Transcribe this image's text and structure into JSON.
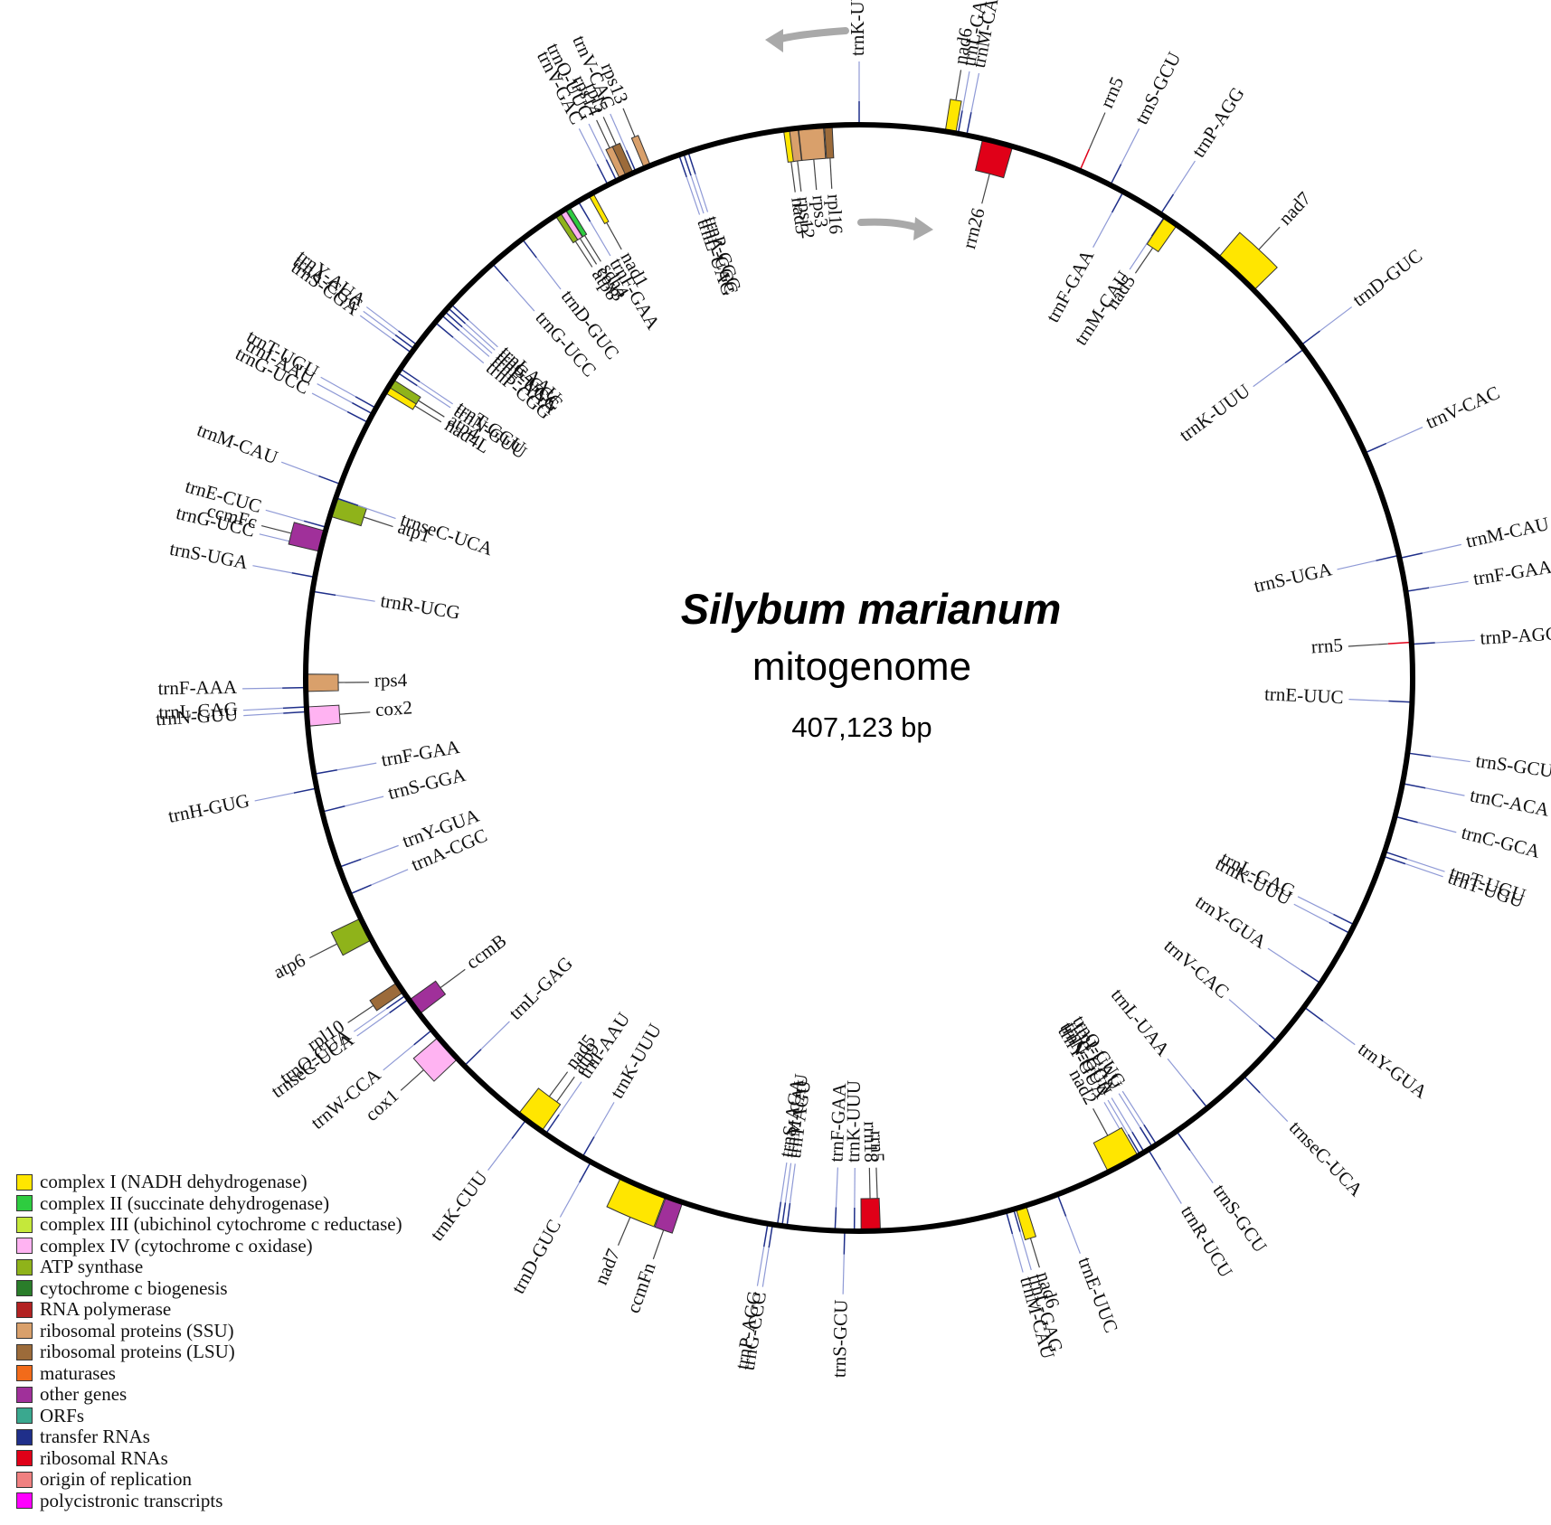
{
  "center": {
    "species": "Silybum marianum",
    "subtitle": "mitogenome",
    "size": "407,123 bp"
  },
  "colors": {
    "complex1": "#ffe600",
    "complex2": "#2ecc40",
    "complex3": "#c5e83a",
    "complex4": "#ffb3f2",
    "atp": "#8fb31a",
    "ccm": "#2a7d2a",
    "rnapol": "#b22222",
    "ssu": "#d9a06b",
    "lsu": "#9c6b3a",
    "maturase": "#f26b1a",
    "other": "#a0309a",
    "orf": "#3aa88f",
    "trna": "#1f2f8a",
    "rrna": "#e00018",
    "ori": "#f08080",
    "poly": "#ff00ff"
  },
  "legend": [
    {
      "label": "complex I (NADH dehydrogenase)",
      "color": "#ffe600"
    },
    {
      "label": "complex II (succinate dehydrogenase)",
      "color": "#2ecc40"
    },
    {
      "label": "complex III (ubichinol cytochrome c reductase)",
      "color": "#c5e83a"
    },
    {
      "label": "complex IV (cytochrome c oxidase)",
      "color": "#ffb3f2"
    },
    {
      "label": "ATP synthase",
      "color": "#8fb31a"
    },
    {
      "label": "cytochrome c biogenesis",
      "color": "#2a7d2a"
    },
    {
      "label": "RNA polymerase",
      "color": "#b22222"
    },
    {
      "label": "ribosomal proteins (SSU)",
      "color": "#d9a06b"
    },
    {
      "label": "ribosomal proteins (LSU)",
      "color": "#9c6b3a"
    },
    {
      "label": "maturases",
      "color": "#f26b1a"
    },
    {
      "label": "other genes",
      "color": "#a0309a"
    },
    {
      "label": "ORFs",
      "color": "#3aa88f"
    },
    {
      "label": "transfer RNAs",
      "color": "#1f2f8a"
    },
    {
      "label": "ribosomal RNAs",
      "color": "#e00018"
    },
    {
      "label": "origin of replication",
      "color": "#f08080"
    },
    {
      "label": "polycistronic transcripts",
      "color": "#ff00ff"
    }
  ],
  "genes": [
    {
      "name": "trnK-UUU",
      "angle": 0,
      "side": "out",
      "cat": "trna"
    },
    {
      "name": "nad6",
      "angle": 9.5,
      "side": "out",
      "cat": "complex1",
      "len": 1.1
    },
    {
      "name": "trnL-GAG",
      "angle": 10.3,
      "side": "out",
      "cat": "trna"
    },
    {
      "name": "trnM-CAU",
      "angle": 11.2,
      "side": "out",
      "cat": "trna"
    },
    {
      "name": "rrn26",
      "angle": 14.5,
      "side": "in",
      "cat": "rrna",
      "len": 3.2
    },
    {
      "name": "rrn5",
      "angle": 23.5,
      "side": "out",
      "cat": "rrna"
    },
    {
      "name": "trnS-GCU",
      "angle": 27,
      "side": "out",
      "cat": "trna"
    },
    {
      "name": "trnF-GAA",
      "angle": 28.5,
      "side": "in",
      "cat": "trna"
    },
    {
      "name": "trnP-AGG",
      "angle": 33,
      "side": "out",
      "cat": "trna"
    },
    {
      "name": "trnM-CAU",
      "angle": 33.5,
      "side": "in",
      "cat": "trna"
    },
    {
      "name": "nad5",
      "angle": 34.3,
      "side": "in",
      "cat": "complex1",
      "len": 1.5
    },
    {
      "name": "nad7",
      "angle": 43,
      "side": "out",
      "cat": "complex1",
      "len": 5
    },
    {
      "name": "trnD-GUC",
      "angle": 53,
      "side": "out",
      "cat": "trna"
    },
    {
      "name": "trnK-UUU",
      "angle": 53.5,
      "side": "in",
      "cat": "trna"
    },
    {
      "name": "trnV-CAC",
      "angle": 66,
      "side": "out",
      "cat": "trna"
    },
    {
      "name": "trnS-UGA",
      "angle": 77.2,
      "side": "in",
      "cat": "trna"
    },
    {
      "name": "trnM-CAU",
      "angle": 77.5,
      "side": "out",
      "cat": "trna"
    },
    {
      "name": "trnF-GAA",
      "angle": 81,
      "side": "out",
      "cat": "trna"
    },
    {
      "name": "rrn5",
      "angle": 86.3,
      "side": "in",
      "cat": "rrna"
    },
    {
      "name": "trnP-AGG",
      "angle": 86.5,
      "side": "out",
      "cat": "trna"
    },
    {
      "name": "trnE-UUC",
      "angle": 92.5,
      "side": "in",
      "cat": "trna"
    },
    {
      "name": "trnS-GCU",
      "angle": 97.8,
      "side": "out",
      "cat": "trna"
    },
    {
      "name": "trnC-ACA",
      "angle": 101,
      "side": "out",
      "cat": "trna"
    },
    {
      "name": "trnC-GCA",
      "angle": 104.5,
      "side": "out",
      "cat": "trna"
    },
    {
      "name": "trnT-UGU",
      "angle": 108.3,
      "side": "out",
      "cat": "trna"
    },
    {
      "name": "trnT-UGU",
      "angle": 108.8,
      "side": "out",
      "cat": "trna"
    },
    {
      "name": "trnL-GAG",
      "angle": 116.5,
      "side": "in",
      "cat": "trna"
    },
    {
      "name": "trnK-UUU",
      "angle": 117.5,
      "side": "in",
      "cat": "trna"
    },
    {
      "name": "trnY-GUA",
      "angle": 123.5,
      "side": "in",
      "cat": "trna"
    },
    {
      "name": "trnY-GUA",
      "angle": 126.5,
      "side": "out",
      "cat": "trna"
    },
    {
      "name": "trnV-CAC",
      "angle": 131,
      "side": "in",
      "cat": "trna"
    },
    {
      "name": "trnseC-UCA",
      "angle": 136,
      "side": "out",
      "cat": "trna"
    },
    {
      "name": "trnL-UAA",
      "angle": 141,
      "side": "in",
      "cat": "trna"
    },
    {
      "name": "trnS-GCU",
      "angle": 145,
      "side": "out",
      "cat": "trna"
    },
    {
      "name": "trnQ-CUG",
      "angle": 147.5,
      "side": "in",
      "cat": "trna"
    },
    {
      "name": "trnI-UAU",
      "angle": 148,
      "side": "in",
      "cat": "trna"
    },
    {
      "name": "trnR-UCU",
      "angle": 148.5,
      "side": "out",
      "cat": "trna"
    },
    {
      "name": "trnC-GCA",
      "angle": 149,
      "side": "in",
      "cat": "trna"
    },
    {
      "name": "trnN-GUU",
      "angle": 149.5,
      "side": "in",
      "cat": "trna"
    },
    {
      "name": "trnY-GUA",
      "angle": 150,
      "side": "in",
      "cat": "trna"
    },
    {
      "name": "nad2",
      "angle": 151.5,
      "side": "in",
      "cat": "complex1",
      "len": 3.5
    },
    {
      "name": "trnE-UUC",
      "angle": 159,
      "side": "out",
      "cat": "trna"
    },
    {
      "name": "nad6",
      "angle": 163,
      "side": "out",
      "cat": "complex1",
      "len": 1.1
    },
    {
      "name": "trnL-GAG",
      "angle": 163.8,
      "side": "out",
      "cat": "trna"
    },
    {
      "name": "trnM-CAU",
      "angle": 164.6,
      "side": "out",
      "cat": "trna"
    },
    {
      "name": "rrn5",
      "angle": 178,
      "side": "in",
      "cat": "rrna"
    },
    {
      "name": "rrn18",
      "angle": 178.8,
      "side": "in",
      "cat": "rrna",
      "len": 2
    },
    {
      "name": "trnK-UUU",
      "angle": 180.5,
      "side": "in",
      "cat": "trna"
    },
    {
      "name": "trnS-GCU",
      "angle": 181.5,
      "side": "out",
      "cat": "trna"
    },
    {
      "name": "trnF-GAA",
      "angle": 182.5,
      "side": "in",
      "cat": "trna"
    },
    {
      "name": "trnT-AGU",
      "angle": 187.5,
      "side": "in",
      "cat": "trna"
    },
    {
      "name": "trnM-CAU",
      "angle": 188,
      "side": "in",
      "cat": "trna"
    },
    {
      "name": "trnS-AGA",
      "angle": 188.5,
      "side": "in",
      "cat": "trna"
    },
    {
      "name": "trnG-CCC",
      "angle": 189,
      "side": "out",
      "cat": "trna"
    },
    {
      "name": "trnP-AGG",
      "angle": 189.5,
      "side": "out",
      "cat": "trna"
    },
    {
      "name": "ccmFn",
      "angle": 199.5,
      "side": "out",
      "cat": "other",
      "len": 1.8
    },
    {
      "name": "nad7",
      "angle": 203,
      "side": "out",
      "cat": "complex1",
      "len": 5
    },
    {
      "name": "trnD-GUC",
      "angle": 209,
      "side": "out",
      "cat": "trna"
    },
    {
      "name": "trnK-UUU",
      "angle": 210,
      "side": "in",
      "cat": "trna"
    },
    {
      "name": "trnI-AAU",
      "angle": 214.5,
      "side": "in",
      "cat": "trna"
    },
    {
      "name": "atp9",
      "angle": 215.5,
      "side": "in",
      "cat": "atp",
      "len": 0.5
    },
    {
      "name": "nad5",
      "angle": 216.5,
      "side": "in",
      "cat": "complex1",
      "len": 3
    },
    {
      "name": "trnK-CUU",
      "angle": 217,
      "side": "out",
      "cat": "trna"
    },
    {
      "name": "trnL-GAG",
      "angle": 225.5,
      "side": "in",
      "cat": "trna"
    },
    {
      "name": "cox1",
      "angle": 228,
      "side": "out",
      "cat": "complex4",
      "len": 3
    },
    {
      "name": "trnW-CCA",
      "angle": 230.5,
      "side": "out",
      "cat": "trna"
    },
    {
      "name": "ccmB",
      "angle": 233.5,
      "side": "in",
      "cat": "other",
      "len": 1.8
    },
    {
      "name": "trnseC-UCA",
      "angle": 234.5,
      "side": "out",
      "cat": "trna"
    },
    {
      "name": "trnQ-CUA",
      "angle": 235,
      "side": "out",
      "cat": "trna"
    },
    {
      "name": "rpl10",
      "angle": 236,
      "side": "out",
      "cat": "lsu",
      "len": 1.2
    },
    {
      "name": "atp6",
      "angle": 243,
      "side": "out",
      "cat": "atp",
      "len": 2.5
    },
    {
      "name": "trnA-CGC",
      "angle": 247,
      "side": "in",
      "cat": "trna"
    },
    {
      "name": "trnY-GUA",
      "angle": 250,
      "side": "in",
      "cat": "trna"
    },
    {
      "name": "trnS-GGA",
      "angle": 256,
      "side": "in",
      "cat": "trna"
    },
    {
      "name": "trnH-GUG",
      "angle": 258.5,
      "side": "out",
      "cat": "trna"
    },
    {
      "name": "trnF-GAA",
      "angle": 260,
      "side": "in",
      "cat": "trna"
    },
    {
      "name": "trnN-GUU",
      "angle": 266.5,
      "side": "out",
      "cat": "trna"
    },
    {
      "name": "trnL-CAG",
      "angle": 267,
      "side": "out",
      "cat": "trna"
    },
    {
      "name": "cox2",
      "angle": 266,
      "side": "in",
      "cat": "complex4",
      "len": 2
    },
    {
      "name": "trnF-AAA",
      "angle": 269,
      "side": "out",
      "cat": "trna"
    },
    {
      "name": "rps4",
      "angle": 269.5,
      "side": "in",
      "cat": "ssu",
      "len": 1.8
    },
    {
      "name": "trnR-UCG",
      "angle": 279,
      "side": "in",
      "cat": "trna"
    },
    {
      "name": "trnS-UGA",
      "angle": 280.5,
      "side": "out",
      "cat": "trna"
    },
    {
      "name": "trnG-UCC",
      "angle": 283.5,
      "side": "out",
      "cat": "trna"
    },
    {
      "name": "ccmFc",
      "angle": 284.3,
      "side": "out",
      "cat": "other",
      "len": 2.2
    },
    {
      "name": "trnE-CUC",
      "angle": 285.8,
      "side": "out",
      "cat": "trna"
    },
    {
      "name": "atp1",
      "angle": 288,
      "side": "in",
      "cat": "atp",
      "len": 2
    },
    {
      "name": "trnseC-UCA",
      "angle": 289,
      "side": "in",
      "cat": "trna"
    },
    {
      "name": "trnM-CAU",
      "angle": 290.5,
      "side": "out",
      "cat": "trna"
    },
    {
      "name": "trnG-UCC",
      "angle": 297.5,
      "side": "out",
      "cat": "trna"
    },
    {
      "name": "trnI-AAU",
      "angle": 298.5,
      "side": "out",
      "cat": "trna"
    },
    {
      "name": "trnT-UGU",
      "angle": 299.2,
      "side": "out",
      "cat": "trna"
    },
    {
      "name": "nad4L",
      "angle": 301.5,
      "side": "in",
      "cat": "complex1",
      "len": 0.9
    },
    {
      "name": "atp4",
      "angle": 302.2,
      "side": "in",
      "cat": "atp",
      "len": 0.9
    },
    {
      "name": "trnN-GUU",
      "angle": 303.5,
      "side": "in",
      "cat": "trna"
    },
    {
      "name": "trnT-GGU",
      "angle": 304,
      "side": "in",
      "cat": "trna"
    },
    {
      "name": "trnS-CGA",
      "angle": 306,
      "side": "out",
      "cat": "trna"
    },
    {
      "name": "trnA-CGC",
      "angle": 306.5,
      "side": "out",
      "cat": "trna"
    },
    {
      "name": "trnY-AUA",
      "angle": 307,
      "side": "out",
      "cat": "trna"
    },
    {
      "name": "trnP-CGG",
      "angle": 310,
      "side": "in",
      "cat": "trna"
    },
    {
      "name": "trnF-AAA",
      "angle": 311,
      "side": "in",
      "cat": "trna"
    },
    {
      "name": "trnP-UGG",
      "angle": 311.5,
      "side": "in",
      "cat": "trna"
    },
    {
      "name": "trnG-GCC",
      "angle": 312,
      "side": "in",
      "cat": "trna"
    },
    {
      "name": "trnI-AAU",
      "angle": 312.5,
      "side": "in",
      "cat": "trna"
    },
    {
      "name": "trnG-UCC",
      "angle": 318.5,
      "side": "in",
      "cat": "trna"
    },
    {
      "name": "trnD-GUC",
      "angle": 322.5,
      "side": "in",
      "cat": "trna"
    },
    {
      "name": "atp8",
      "angle": 327,
      "side": "in",
      "cat": "atp",
      "len": 0.6
    },
    {
      "name": "cox3",
      "angle": 327.6,
      "side": "in",
      "cat": "complex4",
      "len": 0.6
    },
    {
      "name": "sdh4",
      "angle": 328.2,
      "side": "in",
      "cat": "complex2",
      "len": 0.5
    },
    {
      "name": "trnF-GAA",
      "angle": 329.5,
      "side": "in",
      "cat": "trna"
    },
    {
      "name": "nad1",
      "angle": 331,
      "side": "in",
      "cat": "complex1",
      "len": 0.5
    },
    {
      "name": "trnV-GAC",
      "angle": 333,
      "side": "out",
      "cat": "trna"
    },
    {
      "name": "trnQ-UUG",
      "angle": 334,
      "side": "out",
      "cat": "trna"
    },
    {
      "name": "rps14",
      "angle": 334.8,
      "side": "out",
      "cat": "ssu",
      "len": 0.8
    },
    {
      "name": "rpl5",
      "angle": 335.5,
      "side": "out",
      "cat": "lsu",
      "len": 0.8
    },
    {
      "name": "trnV-CAC",
      "angle": 336.2,
      "side": "out",
      "cat": "trna"
    },
    {
      "name": "rps13",
      "angle": 337.5,
      "side": "out",
      "cat": "ssu",
      "len": 0.7
    },
    {
      "name": "trnL-UAG",
      "angle": 341,
      "side": "in",
      "cat": "trna"
    },
    {
      "name": "trnA-CGC",
      "angle": 341.5,
      "side": "in",
      "cat": "trna"
    },
    {
      "name": "trnP-CGG",
      "angle": 342,
      "side": "in",
      "cat": "trna"
    },
    {
      "name": "nad3",
      "angle": 352.5,
      "side": "in",
      "cat": "complex1",
      "len": 0.7
    },
    {
      "name": "rps12",
      "angle": 353.2,
      "side": "in",
      "cat": "ssu",
      "len": 0.9
    },
    {
      "name": "rps3",
      "angle": 355,
      "side": "in",
      "cat": "ssu",
      "len": 2.6
    },
    {
      "name": "rpl16",
      "angle": 356.8,
      "side": "in",
      "cat": "lsu",
      "len": 0.8
    }
  ]
}
